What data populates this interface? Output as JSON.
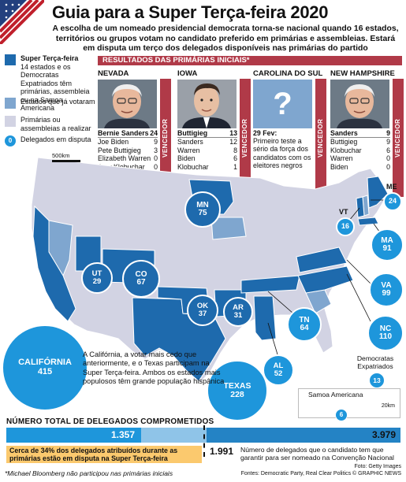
{
  "title": "Guia para a Super Terça-feira 2020",
  "subtitle": "A escolha de um nomeado presidencial democrata torna-se nacional quando 16 estados, territórios ou grupos votam no candidato preferido em primárias e assembleias. Estará em disputa um terço dos delegados disponíveis nas primárias do partido",
  "legend": {
    "super_title": "Super Terça-feira",
    "super_desc": "14 estados e os Democratas Expatriados têm primárias, assembleia ou na Samoa Americana",
    "voted": "Estados que já votaram",
    "pending": "Primárias ou assembleias a realizar",
    "delegates_label": "Delegados em disputa",
    "delegates_badge": "0",
    "colors": {
      "super": "#1e6aad",
      "voted": "#7fa6cf",
      "pending": "#d2d3e3",
      "bubble": "#1e96db"
    }
  },
  "results": {
    "band": "RESULTADOS DAS PRIMÁRIAS INICIAIS*",
    "winner_label": "VENCEDOR",
    "states": [
      {
        "name": "NEVADA",
        "rows": [
          [
            "Bernie Sanders",
            "24"
          ],
          [
            "Joe Biden",
            "9"
          ],
          [
            "Pete Buttigieg",
            "3"
          ],
          [
            "Elizabeth Warren",
            "0"
          ],
          [
            "Amy Klobuchar",
            "0"
          ]
        ]
      },
      {
        "name": "IOWA",
        "rows": [
          [
            "Buttigieg",
            "13"
          ],
          [
            "Sanders",
            "12"
          ],
          [
            "Warren",
            "8"
          ],
          [
            "Biden",
            "6"
          ],
          [
            "Klobuchar",
            "1"
          ]
        ]
      },
      {
        "name": "CAROLINA DO SUL",
        "question": "?",
        "date": "29 Fev:",
        "note": "Primeiro teste a sério da força dos candidatos com os eleitores negros"
      },
      {
        "name": "NEW HAMPSHIRE",
        "rows": [
          [
            "Sanders",
            "9"
          ],
          [
            "Buttigieg",
            "9"
          ],
          [
            "Klobuchar",
            "6"
          ],
          [
            "Warren",
            "0"
          ],
          [
            "Biden",
            "0"
          ]
        ]
      }
    ]
  },
  "map": {
    "scale": "500km",
    "bubbles": [
      {
        "code": "CALIFÓRNIA",
        "value": "415"
      },
      {
        "code": "TEXAS",
        "value": "228"
      },
      {
        "code": "UT",
        "value": "29"
      },
      {
        "code": "CO",
        "value": "67"
      },
      {
        "code": "MN",
        "value": "75"
      },
      {
        "code": "OK",
        "value": "37"
      },
      {
        "code": "AR",
        "value": "31"
      },
      {
        "code": "TN",
        "value": "64"
      },
      {
        "code": "AL",
        "value": "52"
      },
      {
        "code": "VA",
        "value": "99"
      },
      {
        "code": "NC",
        "value": "110"
      },
      {
        "code": "MA",
        "value": "91"
      },
      {
        "code": "ME",
        "value": "24"
      },
      {
        "code": "VT",
        "value": "16"
      },
      {
        "code": "",
        "value": "13"
      },
      {
        "code": "",
        "value": "6"
      }
    ],
    "ca_note": "A Califórnia, a votar mais cedo que anteriormente, e o Texas participam na Super Terça-feira. Ambos os estados mais populosos têm grande população hispânica",
    "expat_label": "Democratas Expatriados",
    "samoa_label": "Samoa Americana",
    "samoa_scale": "20km",
    "vt_label": "VT",
    "me_label": "ME"
  },
  "totals": {
    "title": "NÚMERO TOTAL DE DELEGADOS COMPROMETIDOS",
    "super_value": "1.357",
    "total_value": "3.979",
    "note": "Cerca de 34% dos delegados atribuídos durante as primárias estão em disputa na Super Terça-feira",
    "needed_value": "1.991",
    "needed_text": "Número de delegados que o candidato tem que garantir para ser nomeado na Convenção Nacional"
  },
  "chart_data": {
    "type": "bar",
    "categories": [
      "Super Terça-feira",
      "Total"
    ],
    "values": [
      1357,
      3979
    ],
    "threshold": 1991
  },
  "footnote": "*Michael Bloomberg não participou nas primárias iniciais",
  "credits": [
    "Foto: Getty Images",
    "Fontes: Democratic Party, Real Clear Politics  © GRAPHIC NEWS"
  ]
}
